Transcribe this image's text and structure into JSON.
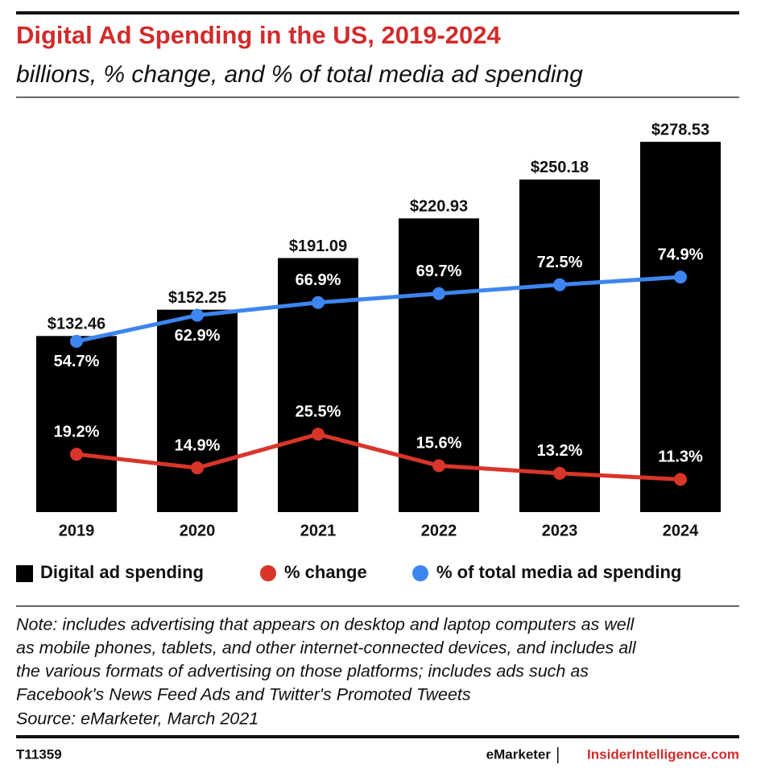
{
  "chart_data": {
    "type": "bar",
    "title": "Digital Ad Spending in the US, 2019-2024",
    "subtitle": "billions, % change, and % of total media ad spending",
    "categories": [
      "2019",
      "2020",
      "2021",
      "2022",
      "2023",
      "2024"
    ],
    "series": [
      {
        "name": "Digital ad spending",
        "type": "bar",
        "color": "#000000",
        "values": [
          132.46,
          152.25,
          191.09,
          220.93,
          250.18,
          278.53
        ],
        "value_labels": [
          "$132.46",
          "$152.25",
          "$191.09",
          "$220.93",
          "$250.18",
          "$278.53"
        ]
      },
      {
        "name": "% change",
        "type": "line",
        "color": "#d9352a",
        "values": [
          19.2,
          14.9,
          25.5,
          15.6,
          13.2,
          11.3
        ],
        "value_labels": [
          "19.2%",
          "14.9%",
          "25.5%",
          "15.6%",
          "13.2%",
          "11.3%"
        ]
      },
      {
        "name": "% of total media ad spending",
        "type": "line",
        "color": "#3d85f0",
        "values": [
          54.7,
          62.9,
          66.9,
          69.7,
          72.5,
          74.9
        ],
        "value_labels": [
          "54.7%",
          "62.9%",
          "66.9%",
          "69.7%",
          "72.5%",
          "74.9%"
        ]
      }
    ],
    "legend": "bottom"
  },
  "note": {
    "lines": [
      "Note: includes advertising that appears on desktop and laptop computers as well",
      "as mobile phones, tablets, and other internet-connected devices, and includes all",
      "the various formats of advertising on those platforms; includes ads such as",
      "Facebook's News Feed Ads and Twitter's Promoted Tweets"
    ],
    "source": "Source: eMarketer, March 2021"
  },
  "footer": {
    "id": "T11359",
    "brand": "eMarketer",
    "site": "InsiderIntelligence.com"
  }
}
